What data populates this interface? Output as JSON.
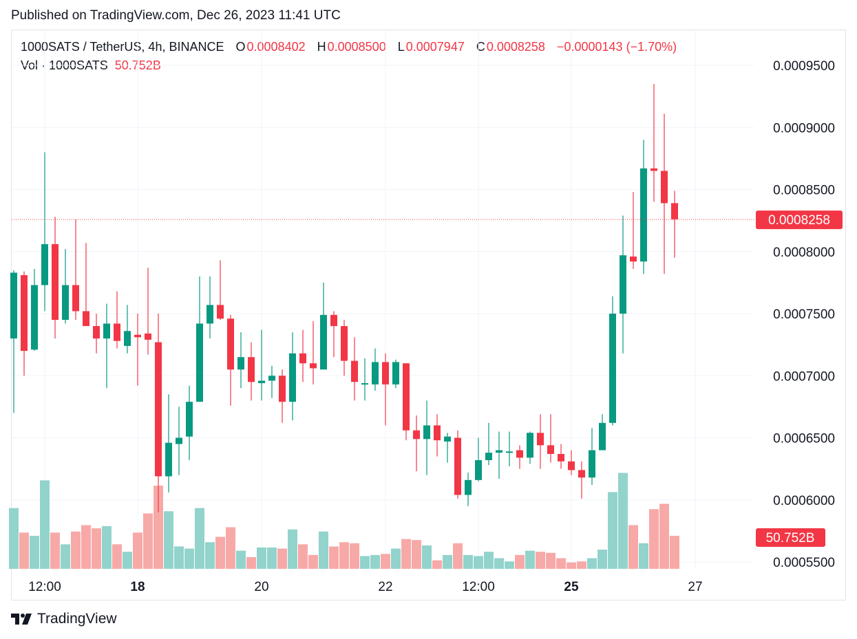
{
  "published": "Published on TradingView.com, Dec 26, 2023 11:41 UTC",
  "brand": "TradingView",
  "colors": {
    "up": "#089981",
    "down": "#f23645",
    "vol_up": "#92d3cc",
    "vol_down": "#f7a9a7",
    "grid": "#f0f3fa",
    "text": "#131722"
  },
  "legend": {
    "symbol": "1000SATS / TetherUS, 4h, BINANCE",
    "o_label": "O",
    "o_value": "0.0008402",
    "h_label": "H",
    "h_value": "0.0008500",
    "l_label": "L",
    "l_value": "0.0007947",
    "c_label": "C",
    "c_value": "0.0008258",
    "change": "−0.0000143 (−1.70%)",
    "vol_label": "Vol · 1000SATS",
    "vol_value": "50.752B"
  },
  "chart_data": {
    "type": "candlestick",
    "interval": "4h",
    "y_ticks": [
      "0.0009500",
      "0.0009000",
      "0.0008500",
      "0.0008000",
      "0.0007500",
      "0.0007000",
      "0.0006500",
      "0.0006000",
      "0.0005500"
    ],
    "ylim": [
      0.000542,
      0.00096
    ],
    "x_ticks": [
      {
        "label": "12:00",
        "index": 3,
        "bold": false
      },
      {
        "label": "18",
        "index": 12,
        "bold": true
      },
      {
        "label": "20",
        "index": 24,
        "bold": false
      },
      {
        "label": "22",
        "index": 36,
        "bold": false
      },
      {
        "label": "12:00",
        "index": 45,
        "bold": false
      },
      {
        "label": "25",
        "index": 54,
        "bold": true
      },
      {
        "label": "27",
        "index": 66,
        "bold": false
      }
    ],
    "last_price_label": "0.0008258",
    "last_volume_label": "50.752B",
    "last_price": 0.0008258,
    "candles": [
      {
        "o": 0.00073,
        "h": 0.000785,
        "l": 0.00067,
        "c": 0.000783,
        "v": 0.57
      },
      {
        "o": 0.000781,
        "h": 0.000784,
        "l": 0.0007,
        "c": 0.00072,
        "v": 0.34
      },
      {
        "o": 0.000721,
        "h": 0.000786,
        "l": 0.00072,
        "c": 0.000773,
        "v": 0.31
      },
      {
        "o": 0.000773,
        "h": 0.00088,
        "l": 0.000752,
        "c": 0.000806,
        "v": 0.83
      },
      {
        "o": 0.000806,
        "h": 0.000828,
        "l": 0.00073,
        "c": 0.000745,
        "v": 0.34
      },
      {
        "o": 0.000745,
        "h": 0.000802,
        "l": 0.000742,
        "c": 0.000773,
        "v": 0.23
      },
      {
        "o": 0.000773,
        "h": 0.000826,
        "l": 0.000745,
        "c": 0.000752,
        "v": 0.35
      },
      {
        "o": 0.000752,
        "h": 0.000807,
        "l": 0.00074,
        "c": 0.00074,
        "v": 0.41
      },
      {
        "o": 0.00074,
        "h": 0.00075,
        "l": 0.000718,
        "c": 0.00073,
        "v": 0.38
      },
      {
        "o": 0.00073,
        "h": 0.000758,
        "l": 0.00069,
        "c": 0.000742,
        "v": 0.4
      },
      {
        "o": 0.000742,
        "h": 0.000768,
        "l": 0.000722,
        "c": 0.000728,
        "v": 0.23
      },
      {
        "o": 0.000724,
        "h": 0.000757,
        "l": 0.000718,
        "c": 0.000736,
        "v": 0.16
      },
      {
        "o": 0.000733,
        "h": 0.00075,
        "l": 0.000692,
        "c": 0.000731,
        "v": 0.34
      },
      {
        "o": 0.000734,
        "h": 0.000787,
        "l": 0.000717,
        "c": 0.000729,
        "v": 0.52
      },
      {
        "o": 0.000727,
        "h": 0.00075,
        "l": 0.00059,
        "c": 0.000619,
        "v": 0.78
      },
      {
        "o": 0.000619,
        "h": 0.000685,
        "l": 0.000606,
        "c": 0.000646,
        "v": 0.54
      },
      {
        "o": 0.000645,
        "h": 0.000675,
        "l": 0.00062,
        "c": 0.00065,
        "v": 0.21
      },
      {
        "o": 0.000651,
        "h": 0.000692,
        "l": 0.000632,
        "c": 0.000679,
        "v": 0.19
      },
      {
        "o": 0.000679,
        "h": 0.00078,
        "l": 0.000679,
        "c": 0.000742,
        "v": 0.57
      },
      {
        "o": 0.000742,
        "h": 0.00078,
        "l": 0.00073,
        "c": 0.000757,
        "v": 0.25
      },
      {
        "o": 0.000757,
        "h": 0.000793,
        "l": 0.000745,
        "c": 0.000746,
        "v": 0.3
      },
      {
        "o": 0.000746,
        "h": 0.000749,
        "l": 0.000676,
        "c": 0.000705,
        "v": 0.39
      },
      {
        "o": 0.000705,
        "h": 0.000735,
        "l": 0.00069,
        "c": 0.000715,
        "v": 0.17
      },
      {
        "o": 0.000715,
        "h": 0.000727,
        "l": 0.00068,
        "c": 0.000695,
        "v": 0.11
      },
      {
        "o": 0.000694,
        "h": 0.000737,
        "l": 0.00068,
        "c": 0.000696,
        "v": 0.2
      },
      {
        "o": 0.000696,
        "h": 0.000708,
        "l": 0.000682,
        "c": 0.0007,
        "v": 0.2
      },
      {
        "o": 0.0007,
        "h": 0.000705,
        "l": 0.000662,
        "c": 0.000679,
        "v": 0.19
      },
      {
        "o": 0.000679,
        "h": 0.000735,
        "l": 0.000664,
        "c": 0.000718,
        "v": 0.37
      },
      {
        "o": 0.000718,
        "h": 0.000737,
        "l": 0.000695,
        "c": 0.00071,
        "v": 0.23
      },
      {
        "o": 0.00071,
        "h": 0.000744,
        "l": 0.000693,
        "c": 0.000706,
        "v": 0.13
      },
      {
        "o": 0.000705,
        "h": 0.000775,
        "l": 0.000705,
        "c": 0.000749,
        "v": 0.35
      },
      {
        "o": 0.000749,
        "h": 0.000752,
        "l": 0.000715,
        "c": 0.00074,
        "v": 0.21
      },
      {
        "o": 0.00074,
        "h": 0.000745,
        "l": 0.0007,
        "c": 0.000712,
        "v": 0.25
      },
      {
        "o": 0.000712,
        "h": 0.000731,
        "l": 0.00068,
        "c": 0.000695,
        "v": 0.24
      },
      {
        "o": 0.000694,
        "h": 0.000714,
        "l": 0.00068,
        "c": 0.000694,
        "v": 0.12
      },
      {
        "o": 0.000693,
        "h": 0.000722,
        "l": 0.000688,
        "c": 0.000711,
        "v": 0.13
      },
      {
        "o": 0.000711,
        "h": 0.000718,
        "l": 0.00066,
        "c": 0.000693,
        "v": 0.14
      },
      {
        "o": 0.000693,
        "h": 0.000713,
        "l": 0.00069,
        "c": 0.000711,
        "v": 0.19
      },
      {
        "o": 0.00071,
        "h": 0.00071,
        "l": 0.000648,
        "c": 0.000656,
        "v": 0.28
      },
      {
        "o": 0.000656,
        "h": 0.000668,
        "l": 0.000623,
        "c": 0.000649,
        "v": 0.27
      },
      {
        "o": 0.000649,
        "h": 0.00068,
        "l": 0.00062,
        "c": 0.00066,
        "v": 0.22
      },
      {
        "o": 0.00066,
        "h": 0.000669,
        "l": 0.000635,
        "c": 0.000648,
        "v": 0.08
      },
      {
        "o": 0.000647,
        "h": 0.000654,
        "l": 0.00063,
        "c": 0.000651,
        "v": 0.13
      },
      {
        "o": 0.00065,
        "h": 0.000656,
        "l": 0.000601,
        "c": 0.000604,
        "v": 0.24
      },
      {
        "o": 0.000604,
        "h": 0.000622,
        "l": 0.000595,
        "c": 0.000616,
        "v": 0.13
      },
      {
        "o": 0.000616,
        "h": 0.00065,
        "l": 0.000615,
        "c": 0.000632,
        "v": 0.12
      },
      {
        "o": 0.000632,
        "h": 0.000662,
        "l": 0.000628,
        "c": 0.000638,
        "v": 0.16
      },
      {
        "o": 0.000638,
        "h": 0.000655,
        "l": 0.000617,
        "c": 0.00064,
        "v": 0.1
      },
      {
        "o": 0.000639,
        "h": 0.000655,
        "l": 0.000627,
        "c": 0.000639,
        "v": 0.07
      },
      {
        "o": 0.00064,
        "h": 0.000644,
        "l": 0.000625,
        "c": 0.000634,
        "v": 0.13
      },
      {
        "o": 0.000634,
        "h": 0.000655,
        "l": 0.000629,
        "c": 0.000654,
        "v": 0.17
      },
      {
        "o": 0.000654,
        "h": 0.000669,
        "l": 0.000625,
        "c": 0.000644,
        "v": 0.16
      },
      {
        "o": 0.000644,
        "h": 0.000669,
        "l": 0.00063,
        "c": 0.000637,
        "v": 0.15
      },
      {
        "o": 0.000637,
        "h": 0.000645,
        "l": 0.000625,
        "c": 0.000631,
        "v": 0.1
      },
      {
        "o": 0.000631,
        "h": 0.00064,
        "l": 0.00062,
        "c": 0.000624,
        "v": 0.06
      },
      {
        "o": 0.000624,
        "h": 0.000631,
        "l": 0.000601,
        "c": 0.000618,
        "v": 0.07
      },
      {
        "o": 0.000618,
        "h": 0.000658,
        "l": 0.000612,
        "c": 0.00064,
        "v": 0.1
      },
      {
        "o": 0.00064,
        "h": 0.000669,
        "l": 0.00064,
        "c": 0.000662,
        "v": 0.18
      },
      {
        "o": 0.000662,
        "h": 0.000764,
        "l": 0.00066,
        "c": 0.00075,
        "v": 0.72
      },
      {
        "o": 0.00075,
        "h": 0.000829,
        "l": 0.000718,
        "c": 0.000797,
        "v": 0.9
      },
      {
        "o": 0.000796,
        "h": 0.000848,
        "l": 0.000786,
        "c": 0.000792,
        "v": 0.41
      },
      {
        "o": 0.000792,
        "h": 0.00089,
        "l": 0.000782,
        "c": 0.000867,
        "v": 0.24
      },
      {
        "o": 0.000867,
        "h": 0.000935,
        "l": 0.00084,
        "c": 0.000865,
        "v": 0.56
      },
      {
        "o": 0.000865,
        "h": 0.000911,
        "l": 0.000782,
        "c": 0.000839,
        "v": 0.61
      },
      {
        "o": 0.000839,
        "h": 0.000849,
        "l": 0.000795,
        "c": 0.000826,
        "v": 0.31
      }
    ]
  }
}
